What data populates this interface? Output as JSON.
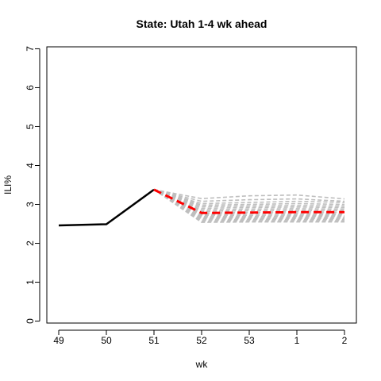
{
  "chart_data": {
    "type": "line",
    "title": "State: Utah 1-4 wk ahead",
    "xlabel": "wk",
    "ylabel": "ILI%",
    "x_tick_labels": [
      "49",
      "50",
      "51",
      "52",
      "53",
      "1",
      "2"
    ],
    "y_ticks": [
      0,
      1,
      2,
      3,
      4,
      5,
      6,
      7
    ],
    "ylim": [
      -0.05,
      7.05
    ],
    "grid": false,
    "legend": "none",
    "series": [
      {
        "role": "observed",
        "x_index": [
          0,
          1,
          2
        ],
        "values": [
          2.46,
          2.49,
          3.38
        ],
        "color": "#000000",
        "style": "solid"
      },
      {
        "role": "forecast-mean",
        "x_index": [
          2,
          3,
          4,
          5,
          6
        ],
        "values": [
          3.38,
          2.78,
          2.79,
          2.8,
          2.8
        ],
        "color": "#ff0000",
        "style": "dashed"
      }
    ],
    "ensemble": {
      "color": "#bebebe",
      "style": "dashed",
      "x_index": [
        2,
        3,
        4,
        5,
        6
      ],
      "members": [
        [
          3.38,
          3.15,
          3.22,
          3.24,
          3.14
        ],
        [
          3.38,
          3.08,
          3.12,
          3.14,
          3.08
        ],
        [
          3.38,
          3.02,
          3.05,
          3.08,
          3.05
        ],
        [
          3.38,
          2.98,
          3.0,
          3.02,
          3.0
        ],
        [
          3.38,
          2.94,
          2.96,
          2.97,
          2.96
        ],
        [
          3.38,
          2.9,
          2.92,
          2.93,
          2.92
        ],
        [
          3.38,
          2.86,
          2.88,
          2.89,
          2.88
        ],
        [
          3.38,
          2.82,
          2.84,
          2.85,
          2.84
        ],
        [
          3.38,
          2.78,
          2.8,
          2.81,
          2.8
        ],
        [
          3.38,
          2.75,
          2.76,
          2.77,
          2.76
        ],
        [
          3.38,
          2.72,
          2.72,
          2.73,
          2.73
        ],
        [
          3.38,
          2.69,
          2.69,
          2.7,
          2.7
        ],
        [
          3.38,
          2.66,
          2.66,
          2.67,
          2.67
        ],
        [
          3.38,
          2.63,
          2.63,
          2.64,
          2.64
        ],
        [
          3.38,
          2.6,
          2.61,
          2.61,
          2.61
        ],
        [
          3.38,
          2.57,
          2.58,
          2.58,
          2.58
        ],
        [
          3.38,
          2.54,
          2.55,
          2.55,
          2.55
        ]
      ]
    }
  }
}
